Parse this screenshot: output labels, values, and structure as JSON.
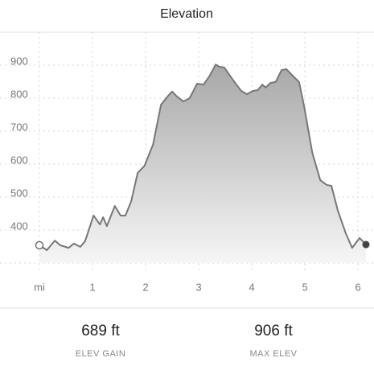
{
  "header": {
    "title": "Elevation"
  },
  "chart_data": {
    "type": "area",
    "x": [
      0,
      0.14,
      0.29,
      0.39,
      0.55,
      0.65,
      0.77,
      0.86,
      1.02,
      1.14,
      1.2,
      1.27,
      1.42,
      1.53,
      1.62,
      1.73,
      1.85,
      1.98,
      2.14,
      2.29,
      2.44,
      2.5,
      2.59,
      2.71,
      2.83,
      2.97,
      3.09,
      3.2,
      3.32,
      3.39,
      3.48,
      3.65,
      3.8,
      3.91,
      4.02,
      4.11,
      4.2,
      4.26,
      4.35,
      4.45,
      4.56,
      4.65,
      4.77,
      4.89,
      4.98,
      5.14,
      5.29,
      5.41,
      5.5,
      5.62,
      5.77,
      5.89,
      6.03,
      6.15
    ],
    "values": [
      354,
      339,
      368,
      354,
      346,
      359,
      349,
      366,
      444,
      417,
      439,
      412,
      473,
      444,
      444,
      488,
      573,
      595,
      659,
      780,
      810,
      820,
      805,
      790,
      800,
      844,
      841,
      866,
      902,
      895,
      893,
      854,
      822,
      812,
      822,
      824,
      841,
      832,
      846,
      849,
      885,
      888,
      868,
      849,
      780,
      634,
      551,
      537,
      534,
      459,
      390,
      346,
      376,
      356
    ],
    "color": "#777777",
    "xlim": [
      0,
      6.15
    ],
    "ylim": [
      300,
      1000
    ],
    "xticks": [
      {
        "value": 0,
        "label": "mi"
      },
      1,
      2,
      3,
      4,
      5,
      6
    ],
    "yticks": [
      400,
      500,
      600,
      700,
      800,
      900
    ],
    "grid": true
  },
  "stats": [
    {
      "value": "689 ft",
      "label": "ELEV GAIN"
    },
    {
      "value": "906 ft",
      "label": "MAX ELEV"
    }
  ]
}
